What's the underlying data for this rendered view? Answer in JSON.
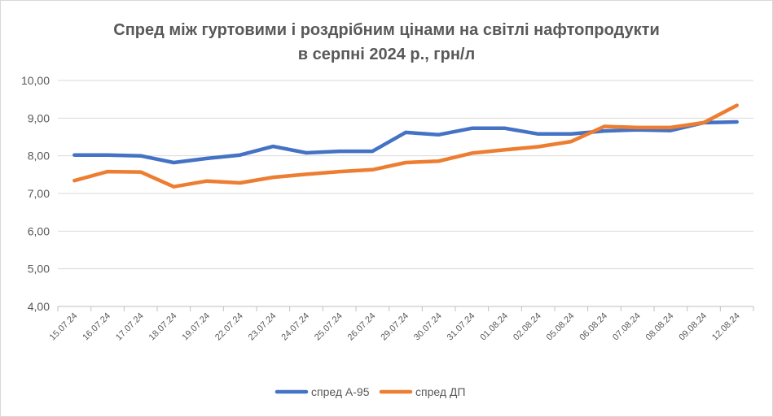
{
  "chart_data": {
    "type": "line",
    "title": "Спред між гуртовими і роздрібним цінами на світлі нафтопродукти",
    "subtitle": "в серпні 2024 р., грн/л",
    "xlabel": "",
    "ylabel": "",
    "ylim": [
      4,
      10
    ],
    "yticks": [
      "4,00",
      "5,00",
      "6,00",
      "7,00",
      "8,00",
      "9,00",
      "10,00"
    ],
    "ytick_values": [
      4,
      5,
      6,
      7,
      8,
      9,
      10
    ],
    "grid": true,
    "legend_position": "bottom",
    "categories": [
      "15.07.24",
      "16.07.24",
      "17.07.24",
      "18.07.24",
      "19.07.24",
      "22.07.24",
      "23.07.24",
      "24.07.24",
      "25.07.24",
      "26.07.24",
      "29.07.24",
      "30.07.24",
      "31.07.24",
      "01.08.24",
      "02.08.24",
      "05.08.24",
      "06.08.24",
      "07.08.24",
      "08.08.24",
      "09.08.24",
      "12.08.24"
    ],
    "series": [
      {
        "name": "спред А-95",
        "color": "#4472c4",
        "values": [
          8.02,
          8.02,
          8.0,
          7.82,
          7.93,
          8.02,
          8.25,
          8.08,
          8.12,
          8.12,
          8.62,
          8.56,
          8.73,
          8.73,
          8.58,
          8.58,
          8.66,
          8.69,
          8.67,
          8.88,
          8.9
        ]
      },
      {
        "name": "спред ДП",
        "color": "#ed7d31",
        "values": [
          7.34,
          7.58,
          7.57,
          7.18,
          7.33,
          7.28,
          7.43,
          7.51,
          7.58,
          7.63,
          7.82,
          7.86,
          8.07,
          8.16,
          8.24,
          8.38,
          8.78,
          8.75,
          8.75,
          8.88,
          9.34
        ]
      }
    ]
  }
}
